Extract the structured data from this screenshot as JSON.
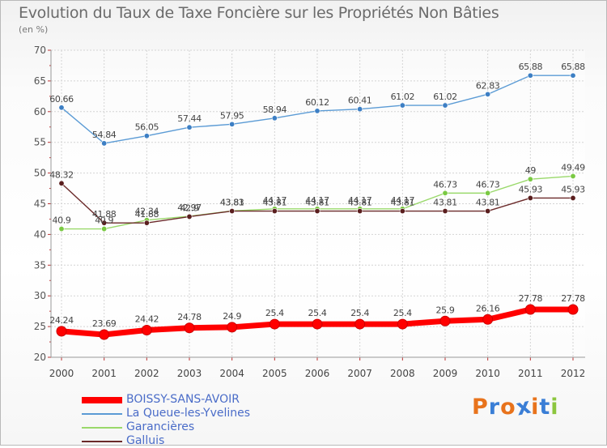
{
  "header": {
    "title": "Evolution du Taux de Taxe Foncière sur les Propriétés Non Bâties",
    "unit_label": "(en %)"
  },
  "logo": {
    "text": "Proxiti",
    "colors": [
      "#e8731c",
      "#3a7ed6",
      "#e8731c",
      "#3a7ed6",
      "#e8731c",
      "#3a7ed6",
      "#8cc63e"
    ]
  },
  "chart_data": {
    "type": "line",
    "title": "Evolution du Taux de Taxe Foncière sur les Propriétés Non Bâties",
    "ylabel": "(en %)",
    "xlabel": "",
    "ylim": [
      20,
      70
    ],
    "yticks": [
      20,
      25,
      30,
      35,
      40,
      45,
      50,
      55,
      60,
      65,
      70
    ],
    "x": [
      "2000",
      "2001",
      "2002",
      "2003",
      "2004",
      "2005",
      "2006",
      "2007",
      "2008",
      "2009",
      "2010",
      "2011",
      "2012"
    ],
    "grid": true,
    "legend_position": "bottom-left",
    "series": [
      {
        "name": "BOISSY-SANS-AVOIR",
        "color": "#ff0000",
        "emphasis": "thick",
        "values": [
          24.24,
          23.69,
          24.42,
          24.78,
          24.9,
          25.4,
          25.4,
          25.4,
          25.4,
          25.9,
          26.16,
          27.78,
          27.78
        ],
        "labels": [
          "24.24",
          "23.69",
          "24.42",
          "24.78",
          "24.9",
          "25.4",
          "25.4",
          "25.4",
          "25.4",
          "25.9",
          "26.16",
          "27.78",
          "27.78"
        ]
      },
      {
        "name": "La Queue-les-Yvelines",
        "color": "#5b9bd5",
        "marker": "#3d7fc4",
        "values": [
          60.66,
          54.84,
          56.05,
          57.44,
          57.95,
          58.94,
          60.12,
          60.41,
          61.02,
          61.02,
          62.83,
          65.88,
          65.88
        ],
        "labels": [
          "60.66",
          "54.84",
          "56.05",
          "57.44",
          "57.95",
          "58.94",
          "60.12",
          "60.41",
          "61.02",
          "61.02",
          "62.83",
          "65.88",
          "65.88"
        ]
      },
      {
        "name": "Garancières",
        "color": "#9ad96b",
        "marker": "#7ac943",
        "values": [
          40.9,
          40.9,
          42.34,
          42.97,
          43.83,
          44.17,
          44.17,
          44.17,
          44.17,
          46.73,
          46.73,
          49.0,
          49.49
        ],
        "labels": [
          "40.9",
          "40.9",
          "42.34",
          "42.97",
          "43.83",
          "44.17",
          "44.17",
          "44.17",
          "44.17",
          "46.73",
          "46.73",
          "49",
          "49.49"
        ]
      },
      {
        "name": "Galluis",
        "color": "#6b2a2a",
        "marker": "#5a1e1e",
        "values": [
          48.32,
          41.88,
          41.88,
          42.9,
          43.81,
          43.81,
          43.81,
          43.81,
          43.81,
          43.81,
          43.81,
          45.93,
          45.93
        ],
        "labels": [
          "48.32",
          "41.88",
          "41.88",
          "42.9",
          "43.81",
          "43.81",
          "43.81",
          "43.81",
          "43.81",
          "43.81",
          "43.81",
          "45.93",
          "45.93"
        ]
      }
    ]
  }
}
